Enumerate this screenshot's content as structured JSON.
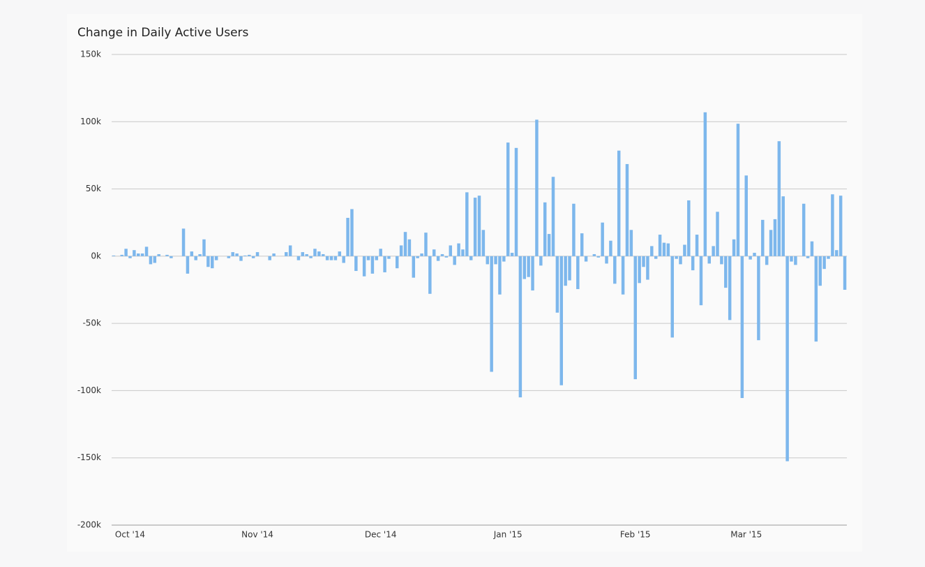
{
  "chart_data": {
    "type": "bar",
    "title": "Change in Daily Active Users",
    "categories": [
      null,
      null,
      null,
      null,
      "Oct '14",
      null,
      null,
      null,
      null,
      null,
      null,
      null,
      null,
      null,
      null,
      null,
      null,
      null,
      null,
      null,
      null,
      null,
      null,
      null,
      null,
      null,
      null,
      null,
      null,
      null,
      null,
      null,
      null,
      null,
      null,
      "Nov '14",
      null,
      null,
      null,
      null,
      null,
      null,
      null,
      null,
      null,
      null,
      null,
      null,
      null,
      null,
      null,
      null,
      null,
      null,
      null,
      null,
      null,
      null,
      null,
      null,
      null,
      null,
      null,
      null,
      null,
      "Dec '14",
      null,
      null,
      null,
      null,
      null,
      null,
      null,
      null,
      null,
      null,
      null,
      null,
      null,
      null,
      null,
      null,
      null,
      null,
      null,
      null,
      null,
      null,
      null,
      null,
      null,
      null,
      null,
      null,
      null,
      null,
      "Jan '15",
      null,
      null,
      null,
      null,
      null,
      null,
      null,
      null,
      null,
      null,
      null,
      null,
      null,
      null,
      null,
      null,
      null,
      null,
      null,
      null,
      null,
      null,
      null,
      null,
      null,
      null,
      null,
      null,
      null,
      null,
      "Feb '15",
      null,
      null,
      null,
      null,
      null,
      null,
      null,
      null,
      null,
      null,
      null,
      null,
      null,
      null,
      null,
      null,
      null,
      null,
      null,
      null,
      null,
      null,
      null,
      null,
      null,
      null,
      "Mar '15",
      null,
      null,
      null,
      null,
      null,
      null,
      null,
      null,
      null,
      null,
      null,
      null,
      null,
      null,
      null,
      null,
      null,
      null,
      null,
      null,
      null,
      null,
      null,
      null
    ],
    "values": [
      500,
      0,
      1000,
      5500,
      -1500,
      4500,
      2000,
      2000,
      7000,
      -6000,
      -5000,
      1500,
      0,
      1000,
      -1500,
      0,
      0,
      20500,
      -13000,
      3500,
      -3000,
      1500,
      12500,
      -8000,
      -9000,
      -3000,
      0,
      0,
      -1500,
      3000,
      2000,
      -3500,
      500,
      1000,
      -1500,
      3000,
      0,
      0,
      -3000,
      2000,
      0,
      0,
      3000,
      8000,
      0,
      -3000,
      3000,
      1500,
      -1500,
      5500,
      3500,
      1500,
      -3000,
      -3000,
      -3000,
      3500,
      -5000,
      28500,
      35000,
      -11000,
      0,
      -15000,
      -3000,
      -13000,
      -3000,
      5500,
      -12000,
      -2000,
      0,
      -9000,
      8000,
      18000,
      12500,
      -16000,
      -1500,
      2000,
      17500,
      -28000,
      5000,
      -3500,
      1500,
      -1000,
      8000,
      -6500,
      9500,
      5000,
      47500,
      -3000,
      43500,
      45000,
      19500,
      -6000,
      -86000,
      -6000,
      -28500,
      -4000,
      84500,
      2500,
      80500,
      -105000,
      -17000,
      -15500,
      -25500,
      101500,
      -7000,
      40000,
      16500,
      59000,
      -42000,
      -96000,
      -22000,
      -18000,
      39000,
      -24500,
      17000,
      -4000,
      0,
      1500,
      -1000,
      25000,
      -5500,
      11500,
      -20500,
      78500,
      -28500,
      68500,
      19500,
      -91500,
      -20000,
      -8000,
      -17500,
      7500,
      -2000,
      16000,
      10000,
      9500,
      -60500,
      -2000,
      -6000,
      8500,
      41500,
      -10500,
      16000,
      -36500,
      107000,
      -5500,
      7500,
      33000,
      -6000,
      -23500,
      -47500,
      12500,
      98500,
      -105500,
      60000,
      -2500,
      2500,
      -62500,
      27000,
      -6500,
      19500,
      27500,
      85500,
      44500,
      -152500,
      -4000,
      -6500,
      0,
      39000,
      -1500,
      11000,
      -63500,
      -22000,
      -9500,
      -2000,
      46000,
      4500,
      45000,
      -25000
    ],
    "color": "#7db7ec",
    "ylim": [
      -200000,
      150000
    ],
    "yticks": [
      {
        "value": -200000,
        "label": "-200k"
      },
      {
        "value": -150000,
        "label": "-150k"
      },
      {
        "value": -100000,
        "label": "-100k"
      },
      {
        "value": -50000,
        "label": "-50k"
      },
      {
        "value": 0,
        "label": "0k"
      },
      {
        "value": 50000,
        "label": "50k"
      },
      {
        "value": 100000,
        "label": "100k"
      },
      {
        "value": 150000,
        "label": "150k"
      }
    ],
    "grid": true
  }
}
